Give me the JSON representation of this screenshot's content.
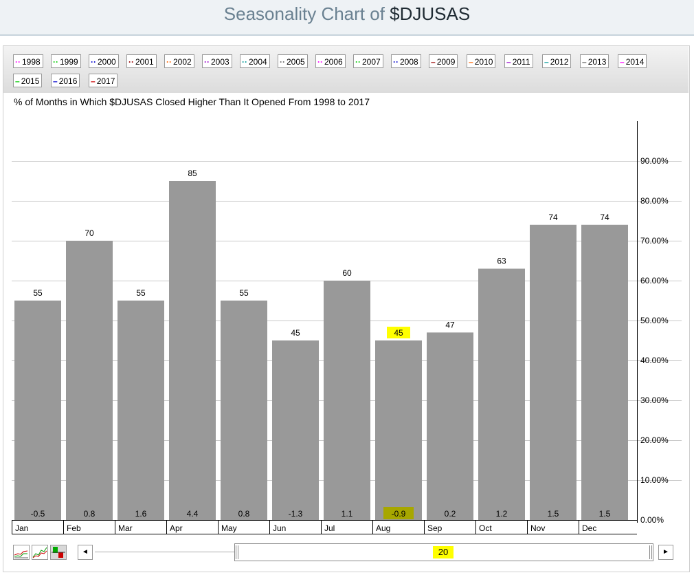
{
  "header": {
    "title_prefix": "Seasonality Chart of ",
    "title_symbol": "$DJUSAS"
  },
  "legend": [
    {
      "label": "1998",
      "color": "#ff00ff",
      "style": "dotted"
    },
    {
      "label": "1999",
      "color": "#00cc00",
      "style": "dotted"
    },
    {
      "label": "2000",
      "color": "#0000cc",
      "style": "dotted"
    },
    {
      "label": "2001",
      "color": "#990000",
      "style": "dotted"
    },
    {
      "label": "2002",
      "color": "#ff6600",
      "style": "dotted"
    },
    {
      "label": "2003",
      "color": "#9900cc",
      "style": "dotted"
    },
    {
      "label": "2004",
      "color": "#009999",
      "style": "dotted"
    },
    {
      "label": "2005",
      "color": "#666666",
      "style": "dotted"
    },
    {
      "label": "2006",
      "color": "#ff00ff",
      "style": "dotted"
    },
    {
      "label": "2007",
      "color": "#00cc00",
      "style": "dotted"
    },
    {
      "label": "2008",
      "color": "#0000cc",
      "style": "dotted"
    },
    {
      "label": "2009",
      "color": "#990000",
      "style": "solid"
    },
    {
      "label": "2010",
      "color": "#ff6600",
      "style": "solid"
    },
    {
      "label": "2011",
      "color": "#9900cc",
      "style": "solid"
    },
    {
      "label": "2012",
      "color": "#009999",
      "style": "solid"
    },
    {
      "label": "2013",
      "color": "#666666",
      "style": "solid"
    },
    {
      "label": "2014",
      "color": "#ff00ff",
      "style": "solid"
    },
    {
      "label": "2015",
      "color": "#00cc00",
      "style": "solid"
    },
    {
      "label": "2016",
      "color": "#0000cc",
      "style": "solid"
    },
    {
      "label": "2017",
      "color": "#cc0000",
      "style": "solid"
    }
  ],
  "subtitle": "% of Months in Which $DJUSAS Closed Higher Than It Opened From 1998 to 2017",
  "chart_data": {
    "type": "bar",
    "categories": [
      "Jan",
      "Feb",
      "Mar",
      "Apr",
      "May",
      "Jun",
      "Jul",
      "Aug",
      "Sep",
      "Oct",
      "Nov",
      "Dec"
    ],
    "values": [
      55,
      70,
      55,
      85,
      55,
      45,
      60,
      45,
      47,
      63,
      74,
      74
    ],
    "avg_change": [
      "-0.5",
      "0.8",
      "1.6",
      "4.4",
      "0.8",
      "-1.3",
      "1.1",
      "-0.9",
      "0.2",
      "1.2",
      "1.5",
      "1.5"
    ],
    "highlighted_category": "Aug",
    "ylim": [
      0,
      90
    ],
    "y_ticks": [
      "0.00%",
      "10.00%",
      "20.00%",
      "30.00%",
      "40.00%",
      "50.00%",
      "60.00%",
      "70.00%",
      "80.00%",
      "90.00%"
    ],
    "grid": true,
    "bar_color": "#999999",
    "highlight_color": "#ffff00"
  },
  "scroller": {
    "value": "20",
    "left_arrow": "◄",
    "right_arrow": "►"
  }
}
